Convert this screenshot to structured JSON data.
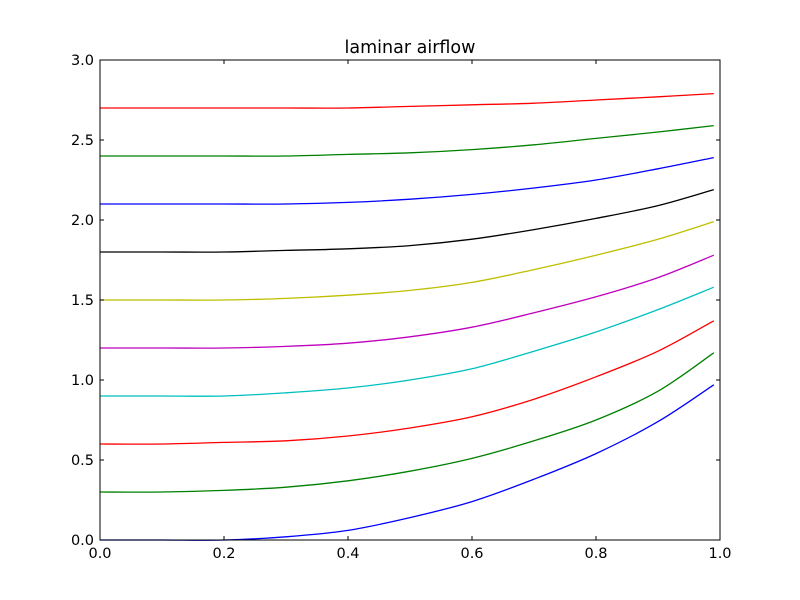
{
  "chart_data": {
    "type": "line",
    "title": "laminar airflow",
    "xlabel": "",
    "ylabel": "",
    "xlim": [
      0.0,
      1.0
    ],
    "ylim": [
      0.0,
      3.0
    ],
    "xticks": [
      "0.0",
      "0.2",
      "0.4",
      "0.6",
      "0.8",
      "1.0"
    ],
    "yticks": [
      "0.0",
      "0.5",
      "1.0",
      "1.5",
      "2.0",
      "2.5",
      "3.0"
    ],
    "grid": false,
    "x": [
      0.0,
      0.1,
      0.2,
      0.3,
      0.4,
      0.5,
      0.6,
      0.7,
      0.8,
      0.9,
      0.99
    ],
    "series": [
      {
        "color": "#0000ff",
        "values": [
          0.0,
          0.0,
          0.0,
          0.02,
          0.06,
          0.14,
          0.24,
          0.38,
          0.54,
          0.74,
          0.97
        ]
      },
      {
        "color": "#008000",
        "values": [
          0.3,
          0.3,
          0.31,
          0.33,
          0.37,
          0.43,
          0.51,
          0.62,
          0.75,
          0.93,
          1.17
        ]
      },
      {
        "color": "#ff0000",
        "values": [
          0.6,
          0.6,
          0.61,
          0.62,
          0.65,
          0.7,
          0.77,
          0.88,
          1.02,
          1.18,
          1.37
        ]
      },
      {
        "color": "#00bfbf",
        "values": [
          0.9,
          0.9,
          0.9,
          0.92,
          0.95,
          1.0,
          1.07,
          1.18,
          1.3,
          1.44,
          1.58
        ]
      },
      {
        "color": "#bf00bf",
        "values": [
          1.2,
          1.2,
          1.2,
          1.21,
          1.23,
          1.27,
          1.33,
          1.42,
          1.52,
          1.64,
          1.78
        ]
      },
      {
        "color": "#bfbf00",
        "values": [
          1.5,
          1.5,
          1.5,
          1.51,
          1.53,
          1.56,
          1.61,
          1.69,
          1.78,
          1.88,
          1.99
        ]
      },
      {
        "color": "#000000",
        "values": [
          1.8,
          1.8,
          1.8,
          1.81,
          1.82,
          1.84,
          1.88,
          1.94,
          2.01,
          2.09,
          2.19
        ]
      },
      {
        "color": "#0000ff",
        "values": [
          2.1,
          2.1,
          2.1,
          2.1,
          2.11,
          2.13,
          2.16,
          2.2,
          2.25,
          2.32,
          2.39
        ]
      },
      {
        "color": "#008000",
        "values": [
          2.4,
          2.4,
          2.4,
          2.4,
          2.41,
          2.42,
          2.44,
          2.47,
          2.51,
          2.55,
          2.59
        ]
      },
      {
        "color": "#ff0000",
        "values": [
          2.7,
          2.7,
          2.7,
          2.7,
          2.7,
          2.71,
          2.72,
          2.73,
          2.75,
          2.77,
          2.79
        ]
      }
    ]
  }
}
